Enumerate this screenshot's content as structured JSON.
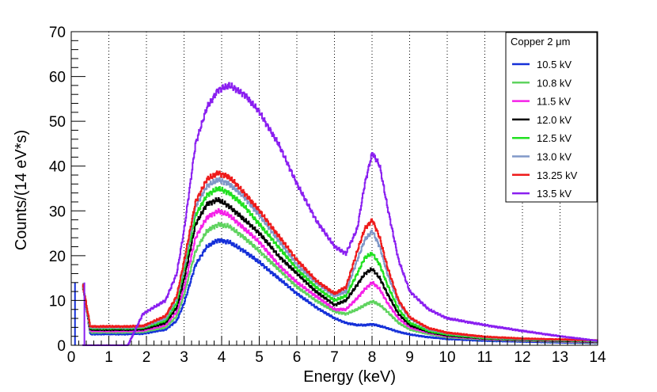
{
  "chart_data": {
    "type": "line",
    "title": "",
    "xlabel": "Energy (keV)",
    "ylabel": "Counts/(14 eV*s)",
    "xlim": [
      0,
      14
    ],
    "ylim": [
      0,
      70
    ],
    "xticks": [
      "0",
      "1",
      "2",
      "3",
      "4",
      "5",
      "6",
      "7",
      "8",
      "9",
      "10",
      "11",
      "12",
      "13",
      "14"
    ],
    "yticks": [
      "0",
      "10",
      "20",
      "30",
      "40",
      "50",
      "60",
      "70"
    ],
    "vertical_grid": true,
    "legend_title": "Copper  2 μm",
    "legend_position": "top-right",
    "x": [
      0.3,
      0.5,
      1.0,
      1.5,
      1.9,
      2.5,
      2.8,
      3.0,
      3.3,
      3.6,
      3.9,
      4.2,
      4.6,
      5.0,
      5.5,
      6.0,
      6.5,
      7.0,
      7.3,
      7.6,
      7.8,
      8.0,
      8.2,
      8.4,
      8.7,
      9.0,
      9.5,
      10.0,
      11.0,
      12.0,
      13.0,
      14.0
    ],
    "series": [
      {
        "name": "10.5 kV",
        "color": "#1530d8",
        "values": [
          13.5,
          2.5,
          2.5,
          2.5,
          2.6,
          3.5,
          5.5,
          9.5,
          18,
          22,
          23.5,
          23,
          21,
          18.5,
          15,
          11.5,
          8.5,
          6,
          5,
          4.5,
          4.5,
          4.7,
          4.3,
          3.8,
          3,
          2.4,
          1.8,
          1.4,
          1.0,
          0.8,
          0.6,
          0.5
        ]
      },
      {
        "name": "10.8 kV",
        "color": "#5fd35f",
        "values": [
          13.5,
          2.9,
          2.9,
          2.9,
          3.0,
          4.0,
          6.5,
          11.5,
          21,
          25.5,
          27,
          26.5,
          24,
          21,
          17,
          13,
          10,
          7.5,
          7,
          8,
          9,
          9.8,
          9,
          7.5,
          5,
          3.5,
          2.5,
          1.8,
          1.3,
          1.0,
          0.8,
          0.6
        ]
      },
      {
        "name": "11.5 kV",
        "color": "#f520e8",
        "values": [
          13.5,
          3.2,
          3.2,
          3.2,
          3.3,
          4.5,
          7.5,
          13,
          24,
          28.5,
          30,
          29,
          26,
          23,
          18,
          14,
          11,
          8,
          8,
          10.5,
          12.5,
          14,
          12.5,
          9.5,
          6,
          4,
          2.8,
          2,
          1.4,
          1.1,
          0.9,
          0.7
        ]
      },
      {
        "name": "12.0 kV",
        "color": "#000000",
        "values": [
          13.5,
          3.5,
          3.5,
          3.5,
          3.6,
          5,
          8.5,
          15,
          27,
          31.5,
          32.5,
          31,
          28,
          25,
          20,
          16,
          12,
          9,
          10,
          13.5,
          16,
          17,
          15,
          11.5,
          7,
          4.5,
          3,
          2.2,
          1.5,
          1.2,
          1.0,
          0.8
        ]
      },
      {
        "name": "12.5 kV",
        "color": "#21e021",
        "values": [
          13.5,
          3.8,
          3.8,
          3.8,
          3.9,
          5.5,
          9.5,
          17,
          29,
          33.5,
          35,
          34,
          31,
          27,
          22,
          17,
          13,
          10,
          11,
          16,
          19.5,
          20.5,
          18,
          13.5,
          8,
          5,
          3.2,
          2.4,
          1.6,
          1.3,
          1.1,
          0.9
        ]
      },
      {
        "name": "13.0 kV",
        "color": "#8098c8",
        "values": [
          13.5,
          4.0,
          4.0,
          4.0,
          4.1,
          6,
          10.5,
          18,
          31,
          35.5,
          37,
          36,
          33,
          29,
          23.5,
          18,
          14,
          11,
          12,
          19,
          23.5,
          25.5,
          22,
          16,
          9.5,
          6,
          3.6,
          2.7,
          1.8,
          1.4,
          1.2,
          1.0
        ]
      },
      {
        "name": "13.25 kV",
        "color": "#ee1a1a",
        "values": [
          13.5,
          4.2,
          4.2,
          4.2,
          4.3,
          6.5,
          11,
          19,
          32,
          37,
          38.5,
          37.5,
          34,
          30,
          24.5,
          19,
          14.5,
          11.5,
          13,
          21,
          26,
          28,
          24,
          17.5,
          10,
          6.2,
          3.8,
          2.8,
          1.9,
          1.5,
          1.3,
          1.1
        ]
      },
      {
        "name": "13.5 kV",
        "color": "#8a1ff0",
        "values": [
          0,
          0,
          0,
          0,
          7,
          10,
          16,
          26,
          45,
          53,
          57,
          58,
          56,
          52,
          45,
          36,
          28,
          22,
          20.5,
          26,
          36,
          43,
          40,
          31,
          19,
          12,
          8,
          6,
          4.5,
          3.2,
          2,
          1
        ]
      }
    ]
  }
}
